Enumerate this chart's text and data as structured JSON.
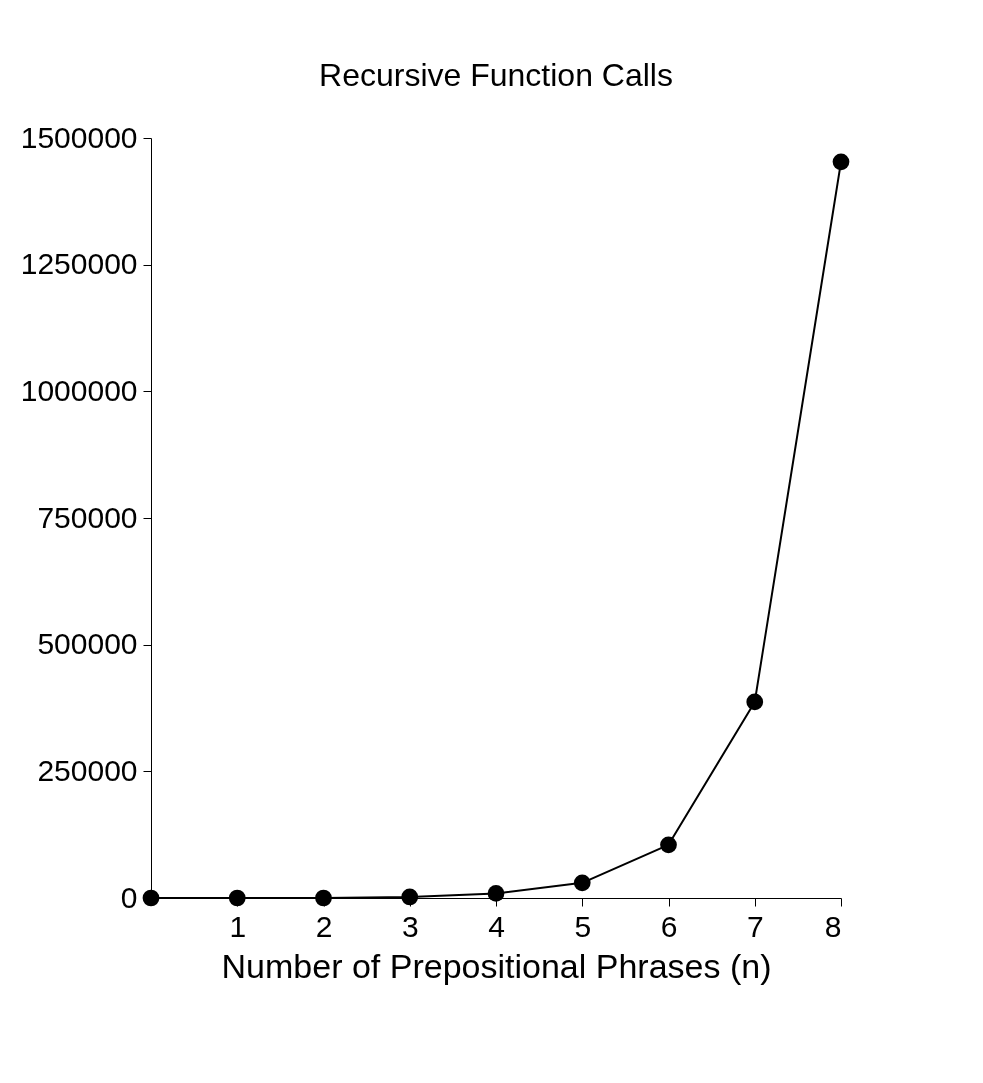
{
  "chart_data": {
    "type": "line",
    "title": "Recursive Function Calls",
    "xlabel": "Number of Prepositional Phrases (n)",
    "x": [
      0,
      1,
      2,
      3,
      4,
      5,
      6,
      7,
      8
    ],
    "series": [
      {
        "color": "#000000",
        "values": [
          0,
          0,
          0,
          2000,
          9000,
          30000,
          105000,
          387000,
          1453000
        ]
      }
    ],
    "xlim": [
      0,
      8
    ],
    "xticks": [
      1,
      2,
      3,
      4,
      5,
      6,
      7,
      8
    ],
    "ylim": [
      0,
      1500000
    ],
    "yticks": [
      0,
      250000,
      500000,
      750000,
      1000000,
      1250000,
      1500000
    ],
    "grid": false,
    "legend": false,
    "marker": "circle",
    "line_style": "solid"
  }
}
